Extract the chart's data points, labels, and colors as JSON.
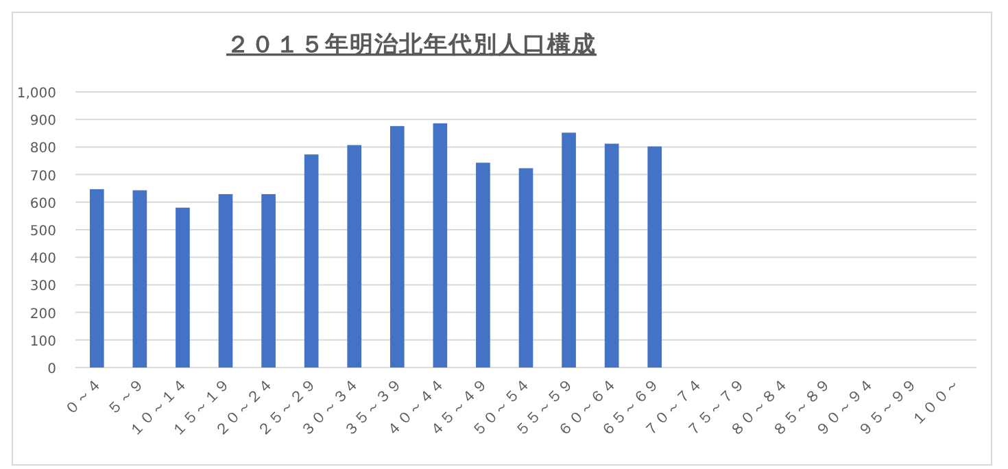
{
  "chart_data": {
    "type": "bar",
    "title": "２０１５年明治北年代別人口構成",
    "categories": [
      "０～４",
      "５～９",
      "１０～１４",
      "１５～１９",
      "２０～２４",
      "２５～２９",
      "３０～３４",
      "３５～３９",
      "４０～４４",
      "４５～４９",
      "５０～５４",
      "５５～５９",
      "６０～６４",
      "６５～６９",
      "７０～７４",
      "７５～７９",
      "８０～８４",
      "８５～８９",
      "９０～９４",
      "９５～９９",
      "１００～"
    ],
    "values": [
      647,
      643,
      580,
      629,
      629,
      773,
      807,
      876,
      886,
      743,
      723,
      852,
      812,
      802,
      null,
      null,
      null,
      null,
      null,
      null,
      null
    ],
    "color": "#4472c4",
    "ylim": [
      0,
      1000
    ],
    "yticks": [
      0,
      {
        "value": 100,
        "label": "100"
      },
      {
        "value": 200,
        "label": "200"
      },
      {
        "value": 300,
        "label": "300"
      },
      {
        "value": 400,
        "label": "400"
      },
      {
        "value": 500,
        "label": "500"
      },
      {
        "value": 600,
        "label": "600"
      },
      {
        "value": 700,
        "label": "700"
      },
      {
        "value": 800,
        "label": "800"
      },
      {
        "value": 900,
        "label": "900"
      },
      {
        "value": 1000,
        "label": "1,000"
      }
    ],
    "grid": "y"
  }
}
